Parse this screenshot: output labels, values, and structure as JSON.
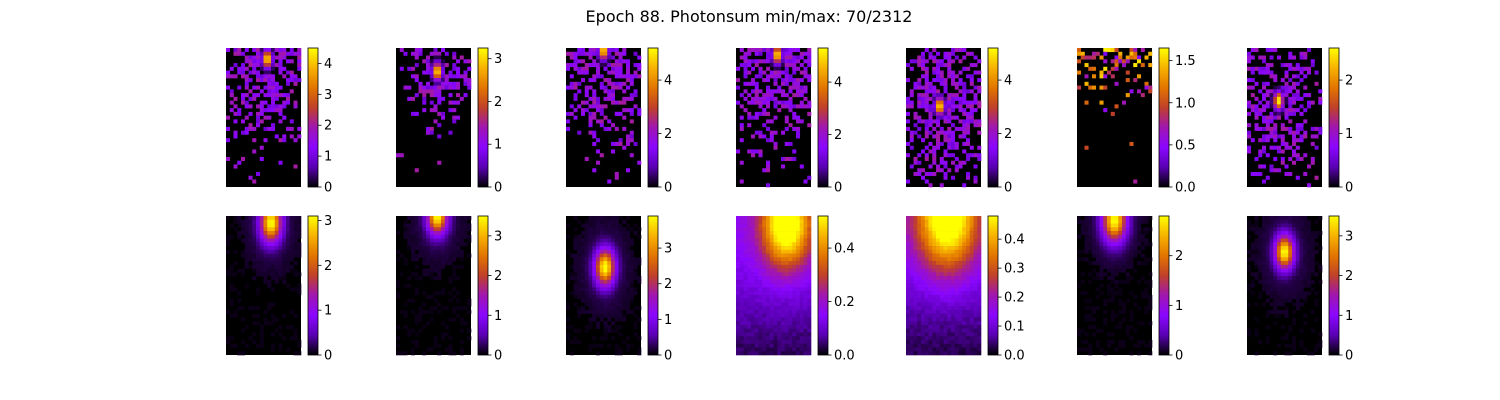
{
  "title": "Epoch 88. Photonsum min/max: 70/2312",
  "colormap": "gnuplot",
  "colormap_stops": [
    "#000000",
    "#5a00b4",
    "#8a06ff",
    "#a016b0",
    "#c0402a",
    "#e27500",
    "#f7b200",
    "#ffff00"
  ],
  "chart_data": [
    {
      "type": "heatmap",
      "row": 1,
      "panel": 1,
      "colorbar_ticks": [
        "0",
        "1",
        "2",
        "3",
        "4"
      ],
      "vmin": 0,
      "vmax": 4.5,
      "pattern": "sparse",
      "peak": [
        0.55,
        0.08
      ],
      "spread": 0.35
    },
    {
      "type": "heatmap",
      "row": 1,
      "panel": 2,
      "colorbar_ticks": [
        "0",
        "1",
        "2",
        "3"
      ],
      "vmin": 0,
      "vmax": 3.25,
      "pattern": "sparse",
      "peak": [
        0.55,
        0.17
      ],
      "spread": 0.22
    },
    {
      "type": "heatmap",
      "row": 1,
      "panel": 3,
      "colorbar_ticks": [
        "0",
        "2",
        "4"
      ],
      "vmin": 0,
      "vmax": 5.2,
      "pattern": "sparse",
      "peak": [
        0.5,
        0.02
      ],
      "spread": 0.4
    },
    {
      "type": "heatmap",
      "row": 1,
      "panel": 4,
      "colorbar_ticks": [
        "0",
        "2",
        "4"
      ],
      "vmin": 0,
      "vmax": 5.3,
      "pattern": "sparse",
      "peak": [
        0.55,
        0.05
      ],
      "spread": 0.42
    },
    {
      "type": "heatmap",
      "row": 1,
      "panel": 5,
      "colorbar_ticks": [
        "0",
        "2",
        "4"
      ],
      "vmin": 0,
      "vmax": 5.2,
      "pattern": "sparse",
      "peak": [
        0.45,
        0.42
      ],
      "spread": 0.38
    },
    {
      "type": "heatmap",
      "row": 1,
      "panel": 6,
      "colorbar_ticks": [
        "0.0",
        "0.5",
        "1.0",
        "1.5"
      ],
      "vmin": 0,
      "vmax": 1.65,
      "pattern": "noise",
      "peak": [
        0.5,
        0.05
      ],
      "spread": 0.25
    },
    {
      "type": "heatmap",
      "row": 1,
      "panel": 7,
      "colorbar_ticks": [
        "0",
        "1",
        "2"
      ],
      "vmin": 0,
      "vmax": 2.6,
      "pattern": "sparse",
      "peak": [
        0.42,
        0.38
      ],
      "spread": 0.3
    },
    {
      "type": "heatmap",
      "row": 2,
      "panel": 1,
      "colorbar_ticks": [
        "0",
        "1",
        "2",
        "3"
      ],
      "vmin": 0,
      "vmax": 3.1,
      "pattern": "blob",
      "peak": [
        0.6,
        0.05
      ],
      "spread": 0.16
    },
    {
      "type": "heatmap",
      "row": 2,
      "panel": 2,
      "colorbar_ticks": [
        "0",
        "1",
        "2",
        "3"
      ],
      "vmin": 0,
      "vmax": 3.5,
      "pattern": "blob",
      "peak": [
        0.55,
        0.0
      ],
      "spread": 0.15
    },
    {
      "type": "heatmap",
      "row": 2,
      "panel": 3,
      "colorbar_ticks": [
        "0",
        "1",
        "2",
        "3"
      ],
      "vmin": 0,
      "vmax": 3.9,
      "pattern": "blob",
      "peak": [
        0.52,
        0.37
      ],
      "spread": 0.15
    },
    {
      "type": "heatmap",
      "row": 2,
      "panel": 4,
      "colorbar_ticks": [
        "0.0",
        "0.2",
        "0.4"
      ],
      "vmin": 0,
      "vmax": 0.52,
      "pattern": "wide",
      "peak": [
        0.67,
        0.05
      ],
      "spread": 0.45
    },
    {
      "type": "heatmap",
      "row": 2,
      "panel": 5,
      "colorbar_ticks": [
        "0.0",
        "0.1",
        "0.2",
        "0.3",
        "0.4"
      ],
      "vmin": 0,
      "vmax": 0.48,
      "pattern": "wide",
      "peak": [
        0.55,
        0.0
      ],
      "spread": 0.55
    },
    {
      "type": "heatmap",
      "row": 2,
      "panel": 6,
      "colorbar_ticks": [
        "0",
        "1",
        "2"
      ],
      "vmin": 0,
      "vmax": 2.8,
      "pattern": "blob",
      "peak": [
        0.5,
        0.03
      ],
      "spread": 0.18
    },
    {
      "type": "heatmap",
      "row": 2,
      "panel": 7,
      "colorbar_ticks": [
        "0",
        "1",
        "2",
        "3"
      ],
      "vmin": 0,
      "vmax": 3.5,
      "pattern": "blob",
      "peak": [
        0.5,
        0.26
      ],
      "spread": 0.14
    }
  ]
}
